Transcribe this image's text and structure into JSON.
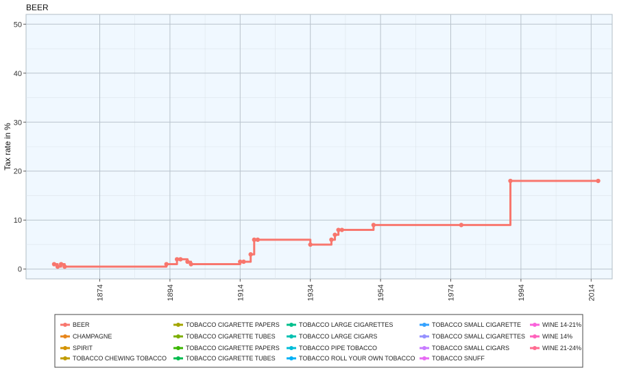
{
  "chart_data": {
    "type": "line",
    "title": "BEER",
    "xlabel": "",
    "ylabel": "Tax rate in %",
    "xlim": [
      1853,
      2020
    ],
    "ylim": [
      -2,
      52
    ],
    "x_ticks": [
      1874,
      1894,
      1914,
      1934,
      1954,
      1974,
      1994,
      2014
    ],
    "y_ticks": [
      0,
      10,
      20,
      30,
      40,
      50
    ],
    "grid": true,
    "legend_position": "bottom",
    "series": [
      {
        "name": "BEER",
        "color": "#F8766D",
        "step": true,
        "x": [
          1861,
          1862,
          1863,
          1864,
          1893,
          1896,
          1897,
          1899,
          1900,
          1914,
          1915,
          1917,
          1918,
          1919,
          1934,
          1940,
          1941,
          1942,
          1943,
          1952,
          1977,
          1991,
          2016
        ],
        "y": [
          1,
          0.5,
          1,
          0.5,
          1,
          2,
          2,
          1.5,
          1,
          1.5,
          1.5,
          3,
          6,
          6,
          5,
          6,
          7,
          8,
          8,
          9,
          9,
          18,
          18
        ]
      }
    ],
    "legend": [
      {
        "label": "BEER",
        "color": "#F8766D"
      },
      {
        "label": "CHAMPAGNE",
        "color": "#E7861B"
      },
      {
        "label": "SPIRIT",
        "color": "#D39200"
      },
      {
        "label": "TOBACCO CHEWING TOBACCO",
        "color": "#C09B00"
      },
      {
        "label": "TOBACCO CIGARETTE  PAPERS",
        "color": "#A3A500"
      },
      {
        "label": "TOBACCO CIGARETTE  TUBES",
        "color": "#7CAE00"
      },
      {
        "label": "TOBACCO CIGARETTE PAPERS",
        "color": "#39B600"
      },
      {
        "label": "TOBACCO CIGARETTE TUBES",
        "color": "#00BB4E"
      },
      {
        "label": "TOBACCO LARGE CIGARETTES",
        "color": "#00BF8C"
      },
      {
        "label": "TOBACCO LARGE CIGARS",
        "color": "#00C0B0"
      },
      {
        "label": "TOBACCO PIPE TOBACCO",
        "color": "#00BCD8"
      },
      {
        "label": "TOBACCO ROLL YOUR OWN TOBACCO",
        "color": "#00B0F6"
      },
      {
        "label": "TOBACCO SMALL CIGARETTE",
        "color": "#35A2FF"
      },
      {
        "label": "TOBACCO SMALL CIGARETTES",
        "color": "#9590FF"
      },
      {
        "label": "TOBACCO SMALL CIGARS",
        "color": "#C77CFF"
      },
      {
        "label": "TOBACCO SNUFF",
        "color": "#E76BF3"
      },
      {
        "label": "WINE 14-21%",
        "color": "#FA62DB"
      },
      {
        "label": "WINE 14%",
        "color": "#FF62BC"
      },
      {
        "label": "WINE 21-24%",
        "color": "#FF6C91"
      }
    ]
  }
}
